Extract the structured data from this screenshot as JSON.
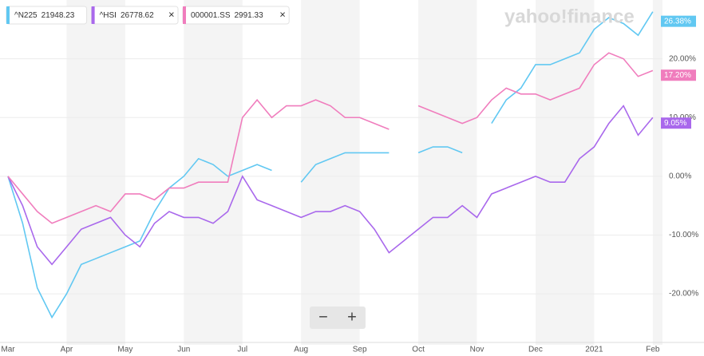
{
  "chart_data": {
    "type": "line",
    "watermark": "yahoo!finance",
    "controls": [
      "−",
      "+"
    ],
    "legend_close": "×",
    "categories": [
      "Mar",
      null,
      null,
      null,
      "Apr",
      null,
      null,
      null,
      "May",
      null,
      null,
      null,
      "Jun",
      null,
      null,
      null,
      "Jul",
      null,
      null,
      null,
      "Aug",
      null,
      null,
      null,
      "Sep",
      null,
      null,
      null,
      "Oct",
      null,
      null,
      null,
      "Nov",
      null,
      null,
      null,
      "Dec",
      null,
      null,
      null,
      "2021",
      null,
      null,
      null,
      "Feb"
    ],
    "series": [
      {
        "name": "^N225",
        "price": 21948.23,
        "closable": false,
        "color": "#61c8f2",
        "end_value": 26.38,
        "end_label": "26.38%",
        "values": [
          0,
          -8,
          -19,
          -24,
          -20,
          -15,
          -14,
          -13,
          -12,
          -11,
          -6,
          -2,
          0,
          3,
          2,
          0,
          1,
          2,
          1,
          null,
          -1,
          2,
          3,
          4,
          4,
          4,
          4,
          null,
          4,
          5,
          5,
          4,
          null,
          9,
          13,
          15,
          19,
          19,
          20,
          21,
          25,
          27,
          26,
          24,
          28
        ]
      },
      {
        "name": "^HSI",
        "price": 26778.62,
        "closable": true,
        "color": "#a968ec",
        "end_value": 9.05,
        "end_label": "9.05%",
        "values": [
          0,
          -5,
          -12,
          -15,
          -12,
          -9,
          -8,
          -7,
          -10,
          -12,
          -8,
          -6,
          -7,
          -7,
          -8,
          -6,
          0,
          -4,
          -5,
          -6,
          -7,
          -6,
          -6,
          -5,
          -6,
          -9,
          -13,
          -11,
          -9,
          -7,
          -7,
          -5,
          -7,
          -3,
          -2,
          -1,
          0,
          -1,
          -1,
          3,
          5,
          9,
          12,
          7,
          10
        ]
      },
      {
        "name": "000001.SS",
        "price": 2991.33,
        "closable": true,
        "color": "#f07dbd",
        "end_value": 17.2,
        "end_label": "17.20%",
        "values": [
          0,
          -3,
          -6,
          -8,
          -7,
          -6,
          -5,
          -6,
          -3,
          -3,
          -4,
          -2,
          -2,
          -1,
          -1,
          -1,
          10,
          13,
          10,
          12,
          12,
          13,
          12,
          10,
          10,
          9,
          8,
          null,
          12,
          11,
          10,
          9,
          10,
          13,
          15,
          14,
          14,
          13,
          14,
          15,
          19,
          21,
          20,
          17,
          18
        ]
      }
    ],
    "ylim": [
      -28,
      30
    ],
    "yticks": [
      {
        "value": -20,
        "label": "-20.00%"
      },
      {
        "value": -10,
        "label": "-10.00%"
      },
      {
        "value": 0,
        "label": "0.00%"
      },
      {
        "value": 10,
        "label": "10.00%"
      },
      {
        "value": 20,
        "label": "20.00%"
      }
    ],
    "grid": true
  }
}
